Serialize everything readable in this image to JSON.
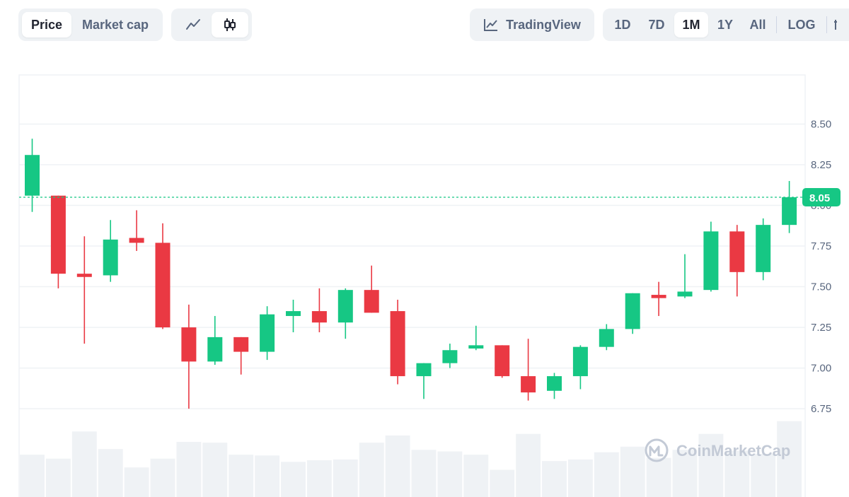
{
  "toolbar": {
    "metric_tabs": [
      {
        "label": "Price",
        "active": true
      },
      {
        "label": "Market cap",
        "active": false
      }
    ],
    "chart_types": [
      {
        "icon": "line-chart-icon",
        "active": false
      },
      {
        "icon": "candlestick-icon",
        "active": true
      }
    ],
    "tradingview_label": "TradingView",
    "ranges": [
      {
        "label": "1D",
        "active": false
      },
      {
        "label": "7D",
        "active": false
      },
      {
        "label": "1M",
        "active": true
      },
      {
        "label": "1Y",
        "active": false
      },
      {
        "label": "All",
        "active": false
      }
    ],
    "log_label": "LOG"
  },
  "watermark": "CoinMarketCap",
  "colors": {
    "up": "#16c784",
    "down": "#ea3943",
    "grid": "#eff2f5",
    "volume": "#eff2f5",
    "current": "#16c784"
  },
  "chart_data": {
    "type": "candlestick",
    "y_ticks": [
      "8.50",
      "8.25",
      "8.00",
      "7.75",
      "7.50",
      "7.25",
      "7.00",
      "6.75"
    ],
    "ylim": [
      6.62,
      8.75
    ],
    "current_price": "8.05",
    "candles": [
      {
        "o": 8.06,
        "h": 8.41,
        "l": 7.96,
        "c": 8.31
      },
      {
        "o": 8.06,
        "h": 8.06,
        "l": 7.49,
        "c": 7.58
      },
      {
        "o": 7.58,
        "h": 7.81,
        "l": 7.15,
        "c": 7.56
      },
      {
        "o": 7.57,
        "h": 7.91,
        "l": 7.53,
        "c": 7.79
      },
      {
        "o": 7.8,
        "h": 7.97,
        "l": 7.72,
        "c": 7.77
      },
      {
        "o": 7.77,
        "h": 7.89,
        "l": 7.24,
        "c": 7.25
      },
      {
        "o": 7.25,
        "h": 7.39,
        "l": 6.75,
        "c": 7.04
      },
      {
        "o": 7.04,
        "h": 7.32,
        "l": 7.02,
        "c": 7.19
      },
      {
        "o": 7.19,
        "h": 7.19,
        "l": 6.96,
        "c": 7.1
      },
      {
        "o": 7.1,
        "h": 7.38,
        "l": 7.05,
        "c": 7.33
      },
      {
        "o": 7.32,
        "h": 7.42,
        "l": 7.22,
        "c": 7.35
      },
      {
        "o": 7.35,
        "h": 7.49,
        "l": 7.22,
        "c": 7.28
      },
      {
        "o": 7.28,
        "h": 7.49,
        "l": 7.18,
        "c": 7.48
      },
      {
        "o": 7.48,
        "h": 7.63,
        "l": 7.34,
        "c": 7.34
      },
      {
        "o": 7.35,
        "h": 7.42,
        "l": 6.9,
        "c": 6.95
      },
      {
        "o": 6.95,
        "h": 7.03,
        "l": 6.81,
        "c": 7.03
      },
      {
        "o": 7.03,
        "h": 7.15,
        "l": 7.0,
        "c": 7.11
      },
      {
        "o": 7.12,
        "h": 7.26,
        "l": 7.11,
        "c": 7.14
      },
      {
        "o": 7.14,
        "h": 7.14,
        "l": 6.94,
        "c": 6.95
      },
      {
        "o": 6.95,
        "h": 7.18,
        "l": 6.8,
        "c": 6.85
      },
      {
        "o": 6.86,
        "h": 6.97,
        "l": 6.81,
        "c": 6.95
      },
      {
        "o": 6.95,
        "h": 7.14,
        "l": 6.87,
        "c": 7.13
      },
      {
        "o": 7.13,
        "h": 7.27,
        "l": 7.11,
        "c": 7.24
      },
      {
        "o": 7.24,
        "h": 7.46,
        "l": 7.21,
        "c": 7.46
      },
      {
        "o": 7.45,
        "h": 7.53,
        "l": 7.32,
        "c": 7.43
      },
      {
        "o": 7.44,
        "h": 7.7,
        "l": 7.43,
        "c": 7.47
      },
      {
        "o": 7.48,
        "h": 7.9,
        "l": 7.47,
        "c": 7.84
      },
      {
        "o": 7.84,
        "h": 7.88,
        "l": 7.44,
        "c": 7.59
      },
      {
        "o": 7.59,
        "h": 7.92,
        "l": 7.54,
        "c": 7.88
      },
      {
        "o": 7.88,
        "h": 8.15,
        "l": 7.83,
        "c": 8.05
      }
    ],
    "volumes": [
      0.53,
      0.48,
      0.82,
      0.6,
      0.37,
      0.48,
      0.69,
      0.68,
      0.53,
      0.52,
      0.44,
      0.46,
      0.47,
      0.68,
      0.77,
      0.59,
      0.57,
      0.53,
      0.34,
      0.79,
      0.45,
      0.47,
      0.56,
      0.63,
      0.49,
      0.59,
      0.79,
      0.58,
      0.54,
      0.95
    ]
  }
}
